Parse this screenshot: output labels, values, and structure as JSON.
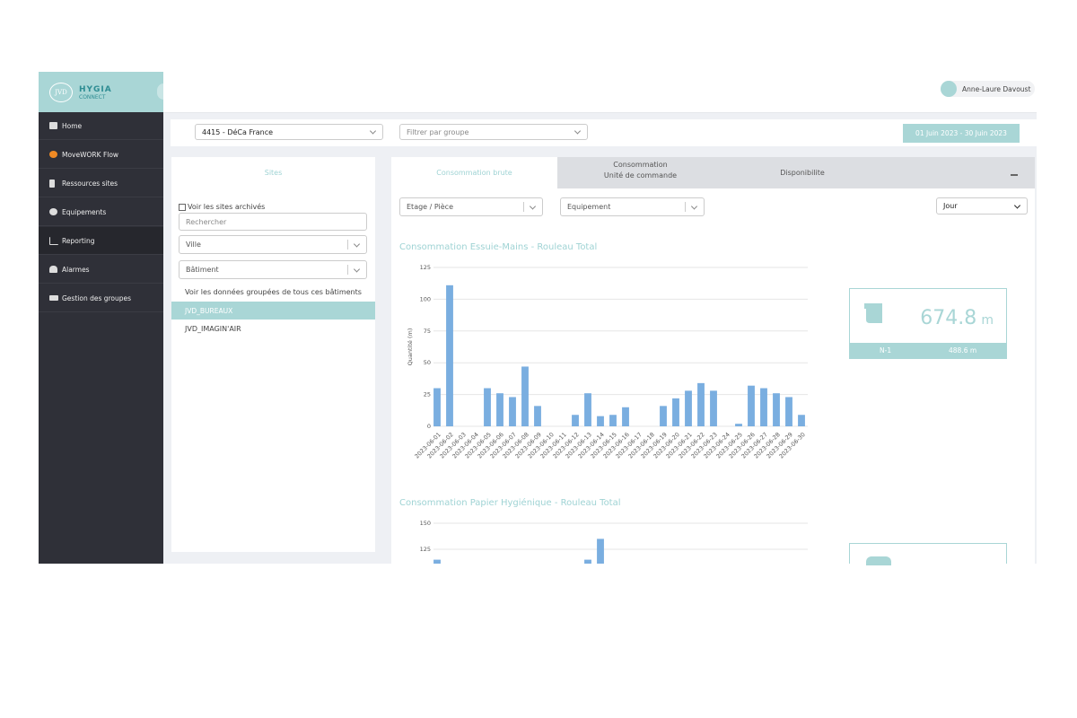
{
  "header": {
    "logo_mark": "JVD",
    "logo": "HYGIA",
    "logo_sub": "CONNECT",
    "user": "Anne-Laure Davoust"
  },
  "menu": [
    "Home",
    "MoveWORK Flow",
    "Ressources sites",
    "Equipements",
    "Reporting",
    "Alarmes",
    "Gestion des groupes"
  ],
  "filters": {
    "site": "4415 - DéCa France",
    "group": "Filtrer par groupe",
    "date_range": "01 Juin 2023 - 30 Juin 2023"
  },
  "sites_panel": {
    "title": "Sites",
    "archived": "Voir les sites archivés",
    "search": "Rechercher",
    "city": "Ville",
    "building": "Bâtiment",
    "grouped": "Voir les données groupées de tous ces bâtiments",
    "sites": [
      "JVD_BUREAUX",
      "JVD_IMAGIN'AIR"
    ]
  },
  "tabs": [
    {
      "lines": [
        "Consommation brute"
      ]
    },
    {
      "lines": [
        "Consommation",
        "Unité de commande"
      ]
    },
    {
      "lines": [
        "Disponibilite"
      ]
    }
  ],
  "report_filters": {
    "floor": "Etage / Pièce",
    "equipment": "Equipement",
    "period": "Jour"
  },
  "kpi": {
    "value": 674.8,
    "unit": "m",
    "previous_label": "N-1",
    "previous": "488.6 m"
  },
  "chart_data": [
    {
      "type": "bar",
      "title": "Consommation Essuie-Mains - Rouleau Total",
      "y_label": "Quantité (m)",
      "categories": [
        "2023-06-01",
        "2023-06-02",
        "2023-06-03",
        "2023-06-04",
        "2023-06-05",
        "2023-06-06",
        "2023-06-07",
        "2023-06-08",
        "2023-06-09",
        "2023-06-10",
        "2023-06-11",
        "2023-06-12",
        "2023-06-13",
        "2023-06-14",
        "2023-06-15",
        "2023-06-16",
        "2023-06-17",
        "2023-06-18",
        "2023-06-19",
        "2023-06-20",
        "2023-06-21",
        "2023-06-22",
        "2023-06-23",
        "2023-06-24",
        "2023-06-25",
        "2023-06-26",
        "2023-06-27",
        "2023-06-28",
        "2023-06-29",
        "2023-06-30"
      ],
      "values": [
        30,
        111,
        0,
        0,
        30,
        26,
        23,
        47,
        16,
        0,
        0,
        9,
        26,
        8,
        9,
        15,
        0,
        0,
        16,
        22,
        28,
        34,
        28,
        0,
        2,
        32,
        30,
        26,
        23,
        9
      ],
      "color": "#7aaee0",
      "ylim": [
        0,
        125
      ],
      "yticks": [
        0,
        25,
        50,
        75,
        100,
        125
      ],
      "grid": true
    },
    {
      "type": "bar",
      "title": "Consommation Papier Hygiénique - Rouleau Total",
      "values": [
        115,
        null,
        null,
        null,
        null,
        null,
        null,
        null,
        null,
        null,
        null,
        null,
        115,
        135,
        null,
        null,
        null,
        null,
        null,
        null,
        null,
        null,
        null,
        null,
        null,
        null,
        null,
        null,
        null,
        null
      ],
      "color": "#7aaee0",
      "ylim": [
        0,
        150
      ],
      "yticks": [
        125,
        150
      ],
      "grid": true
    }
  ]
}
